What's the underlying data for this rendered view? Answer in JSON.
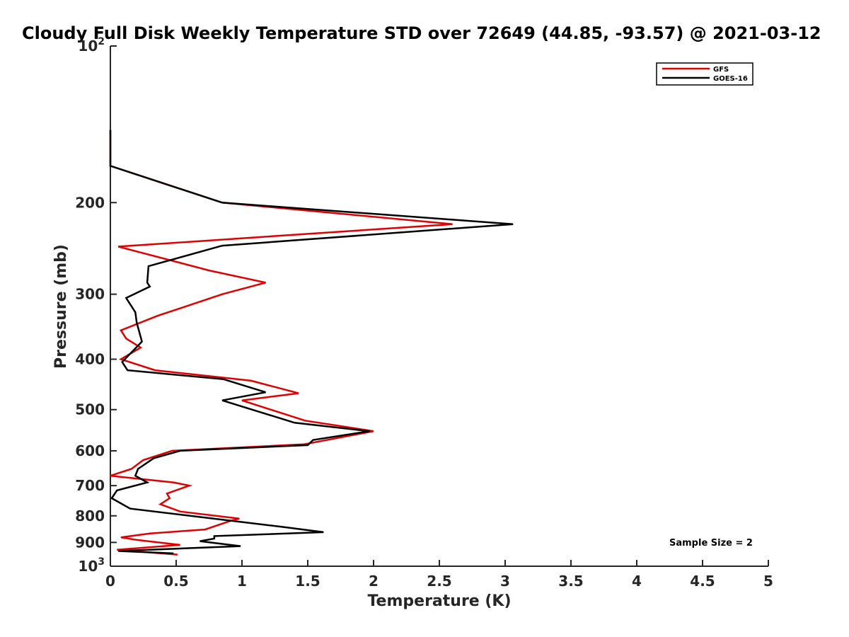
{
  "chart_data": {
    "type": "line",
    "title": "Cloudy Full Disk Weekly Temperature STD over 72649 (44.85, -93.57) @ 2021-03-12",
    "xlabel": "Temperature (K)",
    "ylabel": "Pressure (mb)",
    "xlim": [
      0,
      5
    ],
    "ylim": [
      100,
      1000
    ],
    "y_scale": "log",
    "y_reversed": true,
    "grid": false,
    "legend_position": "top-right",
    "x_ticks": [
      {
        "value": 0,
        "label": "0"
      },
      {
        "value": 0.5,
        "label": "0.5"
      },
      {
        "value": 1,
        "label": "1"
      },
      {
        "value": 1.5,
        "label": "1.5"
      },
      {
        "value": 2,
        "label": "2"
      },
      {
        "value": 2.5,
        "label": "2.5"
      },
      {
        "value": 3,
        "label": "3"
      },
      {
        "value": 3.5,
        "label": "3.5"
      },
      {
        "value": 4,
        "label": "4"
      },
      {
        "value": 4.5,
        "label": "4.5"
      },
      {
        "value": 5,
        "label": "5"
      }
    ],
    "y_ticks": [
      {
        "value": 100,
        "base": "10",
        "exp": "2"
      },
      {
        "value": 200,
        "label": "200"
      },
      {
        "value": 300,
        "label": "300"
      },
      {
        "value": 400,
        "label": "400"
      },
      {
        "value": 500,
        "label": "500"
      },
      {
        "value": 600,
        "label": "600"
      },
      {
        "value": 700,
        "label": "700"
      },
      {
        "value": 800,
        "label": "800"
      },
      {
        "value": 900,
        "label": "900"
      },
      {
        "value": 1000,
        "base": "10",
        "exp": "3"
      }
    ],
    "series": [
      {
        "name": "GFS",
        "color": "#e00000",
        "x": [
          0,
          0,
          0.85,
          2.6,
          0.06,
          0.75,
          1.18,
          0.85,
          0.36,
          0.08,
          0.12,
          0.23,
          0.08,
          0.34,
          1.07,
          1.43,
          1.0,
          1.48,
          2.0,
          1.47,
          0.47,
          0.25,
          0.16,
          0.0,
          0.48,
          0.6,
          0.43,
          0.45,
          0.38,
          0.53,
          0.98,
          0.9,
          0.72,
          0.3,
          0.08,
          0.2,
          0.53,
          0.05,
          0.51
        ],
        "y": [
          145,
          170,
          200,
          220,
          243,
          270,
          285,
          300,
          330,
          352,
          365,
          380,
          400,
          420,
          440,
          465,
          480,
          525,
          550,
          583,
          600,
          625,
          650,
          670,
          690,
          700,
          725,
          740,
          760,
          785,
          810,
          820,
          850,
          865,
          880,
          890,
          910,
          930,
          950
        ]
      },
      {
        "name": "GOES-16",
        "color": "#000000",
        "x": [
          0,
          0,
          0.85,
          3.06,
          0.85,
          0.29,
          0.28,
          0.3,
          0.12,
          0.19,
          0.2,
          0.24,
          0.09,
          0.13,
          0.86,
          1.18,
          0.85,
          1.4,
          1.97,
          1.54,
          1.5,
          0.53,
          0.33,
          0.21,
          0.19,
          0.28,
          0.05,
          0.01,
          0.15,
          1.3,
          1.62,
          0.79,
          0.79,
          0.68,
          0.99,
          0.06,
          0.48
        ],
        "y": [
          145,
          170,
          200,
          220,
          242,
          265,
          285,
          290,
          305,
          325,
          340,
          370,
          405,
          420,
          437,
          463,
          480,
          530,
          550,
          572,
          585,
          600,
          620,
          650,
          670,
          690,
          715,
          740,
          775,
          840,
          860,
          875,
          885,
          895,
          915,
          935,
          945
        ]
      }
    ],
    "annotations": [
      "Sample Size = 2"
    ]
  }
}
